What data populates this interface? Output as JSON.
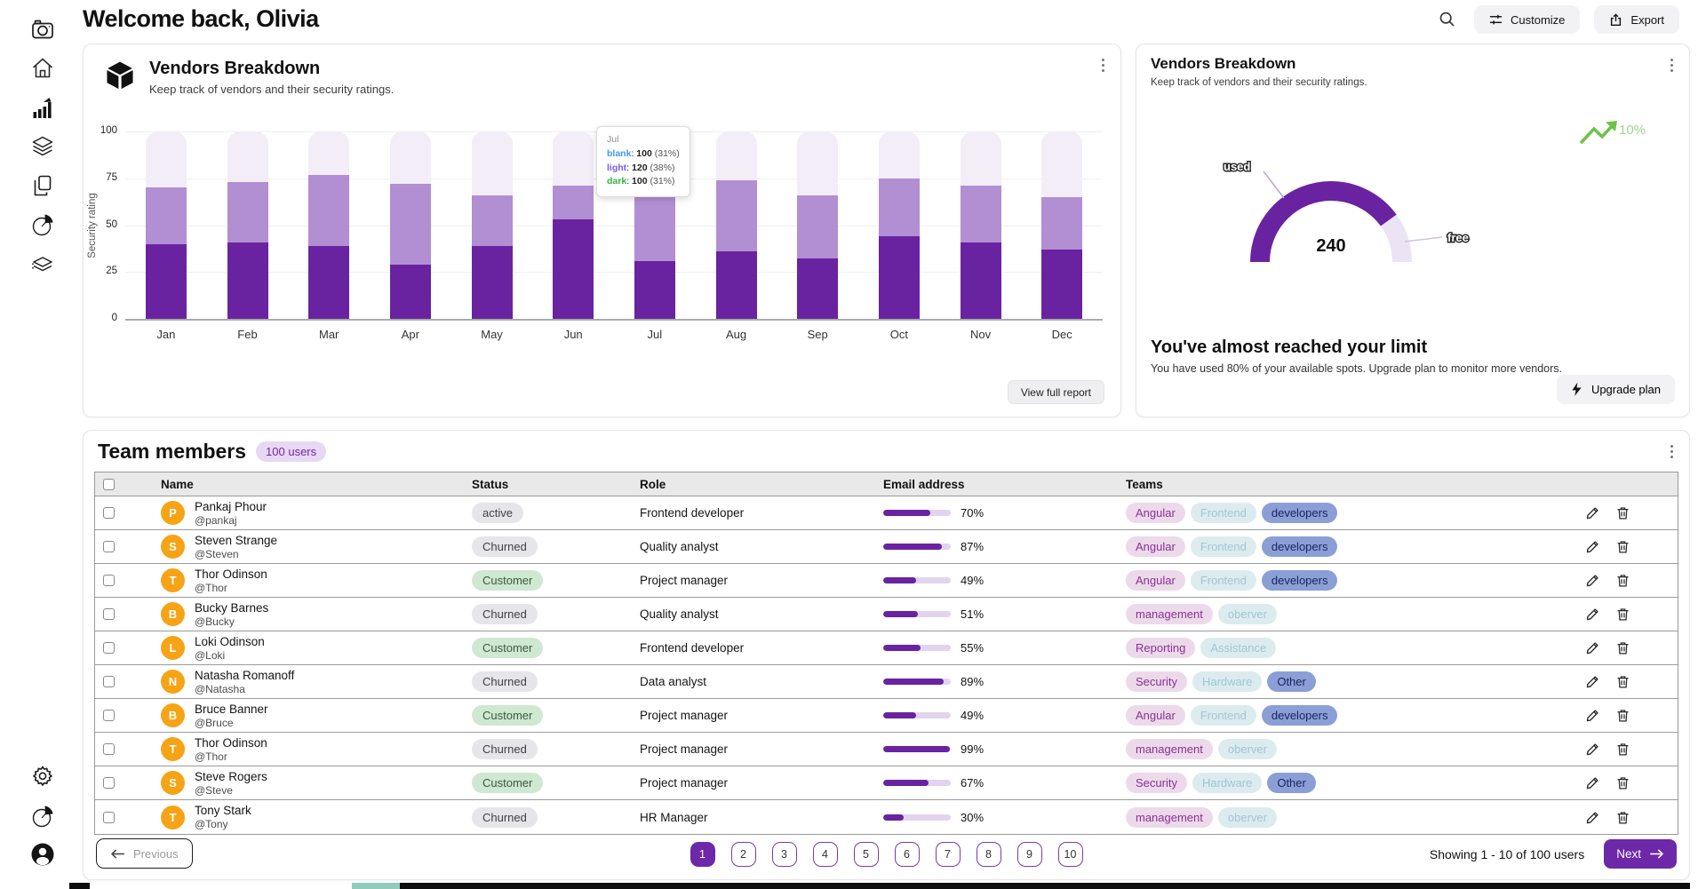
{
  "page": {
    "title": "Welcome back, Olivia"
  },
  "topbar": {
    "customize_label": "Customize",
    "export_label": "Export"
  },
  "sidebar": {
    "top_items": [
      "camera",
      "home",
      "bar-chart",
      "layers",
      "copy",
      "pie-chart",
      "layers-alt"
    ],
    "bottom_items": [
      "settings-gear",
      "pie-chart",
      "user-account"
    ]
  },
  "vendors_chart_card": {
    "title": "Vendors Breakdown",
    "subtitle": "Keep track of vendors and their security ratings.",
    "view_report_label": "View full report",
    "tooltip": {
      "month": "Jul",
      "separator": ": ",
      "lines": [
        {
          "label": "blank",
          "value": "100",
          "pct": "(31%)"
        },
        {
          "label": "light",
          "value": "120",
          "pct": "(38%)"
        },
        {
          "label": "dark",
          "value": "100",
          "pct": "(31%)"
        }
      ]
    }
  },
  "chart_data": {
    "type": "bar",
    "stacked": true,
    "title": "Vendors Breakdown",
    "xlabel": "",
    "ylabel": "Security rating",
    "ylim": [
      0,
      100
    ],
    "yticks": [
      "100",
      "75",
      "50",
      "25",
      "0"
    ],
    "grid": true,
    "categories": [
      "Jan",
      "Feb",
      "Mar",
      "Apr",
      "May",
      "Jun",
      "Jul",
      "Aug",
      "Sep",
      "Oct",
      "Nov",
      "Dec"
    ],
    "series": [
      {
        "name": "dark",
        "color": "#6923a0",
        "values": [
          40,
          41,
          39,
          29,
          39,
          53,
          31,
          36,
          32,
          44,
          41,
          37
        ]
      },
      {
        "name": "light",
        "color": "#b28ed2",
        "values": [
          30,
          32,
          38,
          43,
          27,
          18,
          38,
          38,
          34,
          31,
          30,
          28
        ]
      },
      {
        "name": "blank",
        "color": "#f3edf7",
        "values": [
          30,
          27,
          23,
          28,
          34,
          29,
          31,
          26,
          34,
          25,
          29,
          35
        ]
      }
    ]
  },
  "gauge_card": {
    "title": "Vendors Breakdown",
    "subtitle": "Keep track of vendors and their security ratings.",
    "value": "240",
    "used_label": "used",
    "free_label": "free",
    "used_pct": 80,
    "trend": "10%",
    "limit_title": "You've almost reached your limit",
    "limit_desc": "You have used 80% of your available spots. Upgrade plan to monitor more vendors.",
    "upgrade_label": "Upgrade plan",
    "arc_used_color": "#6923a0",
    "arc_free_color": "#ece3f4",
    "trend_color": "#6cc24a"
  },
  "team_card": {
    "title": "Team members",
    "badge": "100 users",
    "columns": {
      "name": "Name",
      "status": "Status",
      "role": "Role",
      "email": "Email address",
      "teams": "Teams"
    },
    "rows": [
      {
        "initial": "P",
        "name": "Pankaj Phour",
        "handle": "@pankaj",
        "status": "active",
        "status_type": "gray",
        "role": "Frontend developer",
        "progress": 70,
        "progress_label": "70%",
        "teams": [
          {
            "label": "Angular",
            "type": "pink"
          },
          {
            "label": "Frontend",
            "type": "blue"
          },
          {
            "label": "developers",
            "type": "navy"
          }
        ]
      },
      {
        "initial": "S",
        "name": "Steven Strange",
        "handle": "@Steven",
        "status": "Churned",
        "status_type": "gray",
        "role": "Quality analyst",
        "progress": 87,
        "progress_label": "87%",
        "teams": [
          {
            "label": "Angular",
            "type": "pink"
          },
          {
            "label": "Frontend",
            "type": "blue"
          },
          {
            "label": "developers",
            "type": "navy"
          }
        ]
      },
      {
        "initial": "T",
        "name": "Thor Odinson",
        "handle": "@Thor",
        "status": "Customer",
        "status_type": "green",
        "role": "Project manager",
        "progress": 49,
        "progress_label": "49%",
        "teams": [
          {
            "label": "Angular",
            "type": "pink"
          },
          {
            "label": "Frontend",
            "type": "blue"
          },
          {
            "label": "developers",
            "type": "navy"
          }
        ]
      },
      {
        "initial": "B",
        "name": "Bucky Barnes",
        "handle": "@Bucky",
        "status": "Churned",
        "status_type": "gray",
        "role": "Quality analyst",
        "progress": 51,
        "progress_label": "51%",
        "teams": [
          {
            "label": "management",
            "type": "pink"
          },
          {
            "label": "oberver",
            "type": "blue"
          }
        ]
      },
      {
        "initial": "L",
        "name": "Loki Odinson",
        "handle": "@Loki",
        "status": "Customer",
        "status_type": "green",
        "role": "Frontend developer",
        "progress": 55,
        "progress_label": "55%",
        "teams": [
          {
            "label": "Reporting",
            "type": "pink"
          },
          {
            "label": "Assistance",
            "type": "blue"
          }
        ]
      },
      {
        "initial": "N",
        "name": "Natasha Romanoff",
        "handle": "@Natasha",
        "status": "Churned",
        "status_type": "gray",
        "role": "Data analyst",
        "progress": 89,
        "progress_label": "89%",
        "teams": [
          {
            "label": "Security",
            "type": "pink"
          },
          {
            "label": "Hardware",
            "type": "blue"
          },
          {
            "label": "Other",
            "type": "navy"
          }
        ]
      },
      {
        "initial": "B",
        "name": "Bruce Banner",
        "handle": "@Bruce",
        "status": "Customer",
        "status_type": "green",
        "role": "Project manager",
        "progress": 49,
        "progress_label": "49%",
        "teams": [
          {
            "label": "Angular",
            "type": "pink"
          },
          {
            "label": "Frontend",
            "type": "blue"
          },
          {
            "label": "developers",
            "type": "navy"
          }
        ]
      },
      {
        "initial": "T",
        "name": "Thor Odinson",
        "handle": "@Thor",
        "status": "Churned",
        "status_type": "gray",
        "role": "Project manager",
        "progress": 99,
        "progress_label": "99%",
        "teams": [
          {
            "label": "management",
            "type": "pink"
          },
          {
            "label": "oberver",
            "type": "blue"
          }
        ]
      },
      {
        "initial": "S",
        "name": "Steve Rogers",
        "handle": "@Steve",
        "status": "Customer",
        "status_type": "green",
        "role": "Project manager",
        "progress": 67,
        "progress_label": "67%",
        "teams": [
          {
            "label": "Security",
            "type": "pink"
          },
          {
            "label": "Hardware",
            "type": "blue"
          },
          {
            "label": "Other",
            "type": "navy"
          }
        ]
      },
      {
        "initial": "T",
        "name": "Tony Stark",
        "handle": "@Tony",
        "status": "Churned",
        "status_type": "gray",
        "role": "HR Manager",
        "progress": 30,
        "progress_label": "30%",
        "teams": [
          {
            "label": "management",
            "type": "pink"
          },
          {
            "label": "oberver",
            "type": "blue"
          }
        ]
      }
    ],
    "pagination": {
      "previous": "Previous",
      "next": "Next",
      "pages": [
        "1",
        "2",
        "3",
        "4",
        "5",
        "6",
        "7",
        "8",
        "9",
        "10"
      ],
      "active": "1",
      "showing": "Showing 1 - 10 of 100 users"
    }
  },
  "colors": {
    "bar_dark": "#6923a0",
    "bar_light": "#b28ed2",
    "bar_blank": "#f3edf7",
    "accent_purple": "#6d28a9",
    "badge_bg": "#e7d9f3",
    "badge_text": "#7325a8",
    "pill_gray_bg": "#e6e5e9",
    "pill_green_bg": "#cfe8d1",
    "tag_pink_bg": "#ecdaeb",
    "tag_blue_bg": "#dcebee",
    "tag_navy_bg": "#8b9fd6",
    "avatar_orange": "#f6a316",
    "trend_green": "#6cc24a",
    "tooltip_blue": "#3d9bef",
    "tooltip_violet": "#7a5af5",
    "tooltip_green": "#2fb344"
  }
}
